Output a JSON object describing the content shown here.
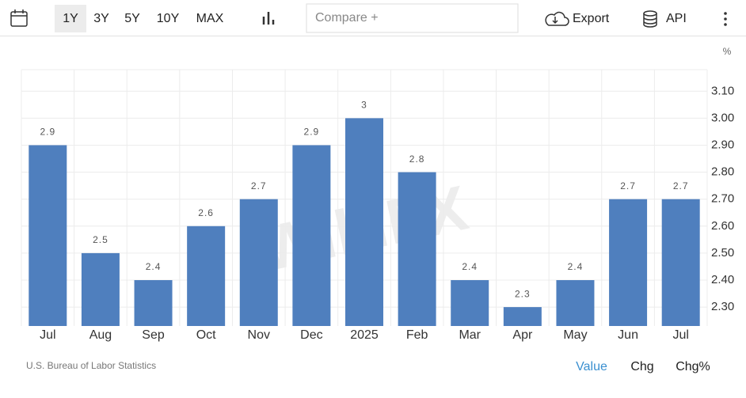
{
  "toolbar": {
    "ranges": [
      "1Y",
      "3Y",
      "5Y",
      "10Y",
      "MAX"
    ],
    "compare": "Compare +",
    "export": "Export",
    "api": "API"
  },
  "chart_data": {
    "type": "bar",
    "unit": "%",
    "watermark": "WikiFX",
    "categories": [
      "Jul",
      "Aug",
      "Sep",
      "Oct",
      "Nov",
      "Dec",
      "2025",
      "Feb",
      "Mar",
      "Apr",
      "May",
      "Jun",
      "Jul"
    ],
    "values": [
      2.9,
      2.5,
      2.4,
      2.6,
      2.7,
      2.9,
      3,
      2.8,
      2.4,
      2.3,
      2.4,
      2.7,
      2.7
    ],
    "color": "#4f7fbe",
    "ylim": [
      2.23,
      3.18
    ],
    "yticks": [
      {
        "value": 2.3,
        "label": "2.30"
      },
      {
        "value": 2.4,
        "label": "2.40"
      },
      {
        "value": 2.5,
        "label": "2.50"
      },
      {
        "value": 2.6,
        "label": "2.60"
      },
      {
        "value": 2.7,
        "label": "2.70"
      },
      {
        "value": 2.8,
        "label": "2.80"
      },
      {
        "value": 2.9,
        "label": "2.90"
      },
      {
        "value": 3,
        "label": "3.00"
      },
      {
        "value": 3.1,
        "label": "3.10"
      }
    ],
    "grid": true
  },
  "footer": {
    "source": "U.S. Bureau of Labor Statistics",
    "tabs": [
      "Value",
      "Chg",
      "Chg%"
    ]
  }
}
